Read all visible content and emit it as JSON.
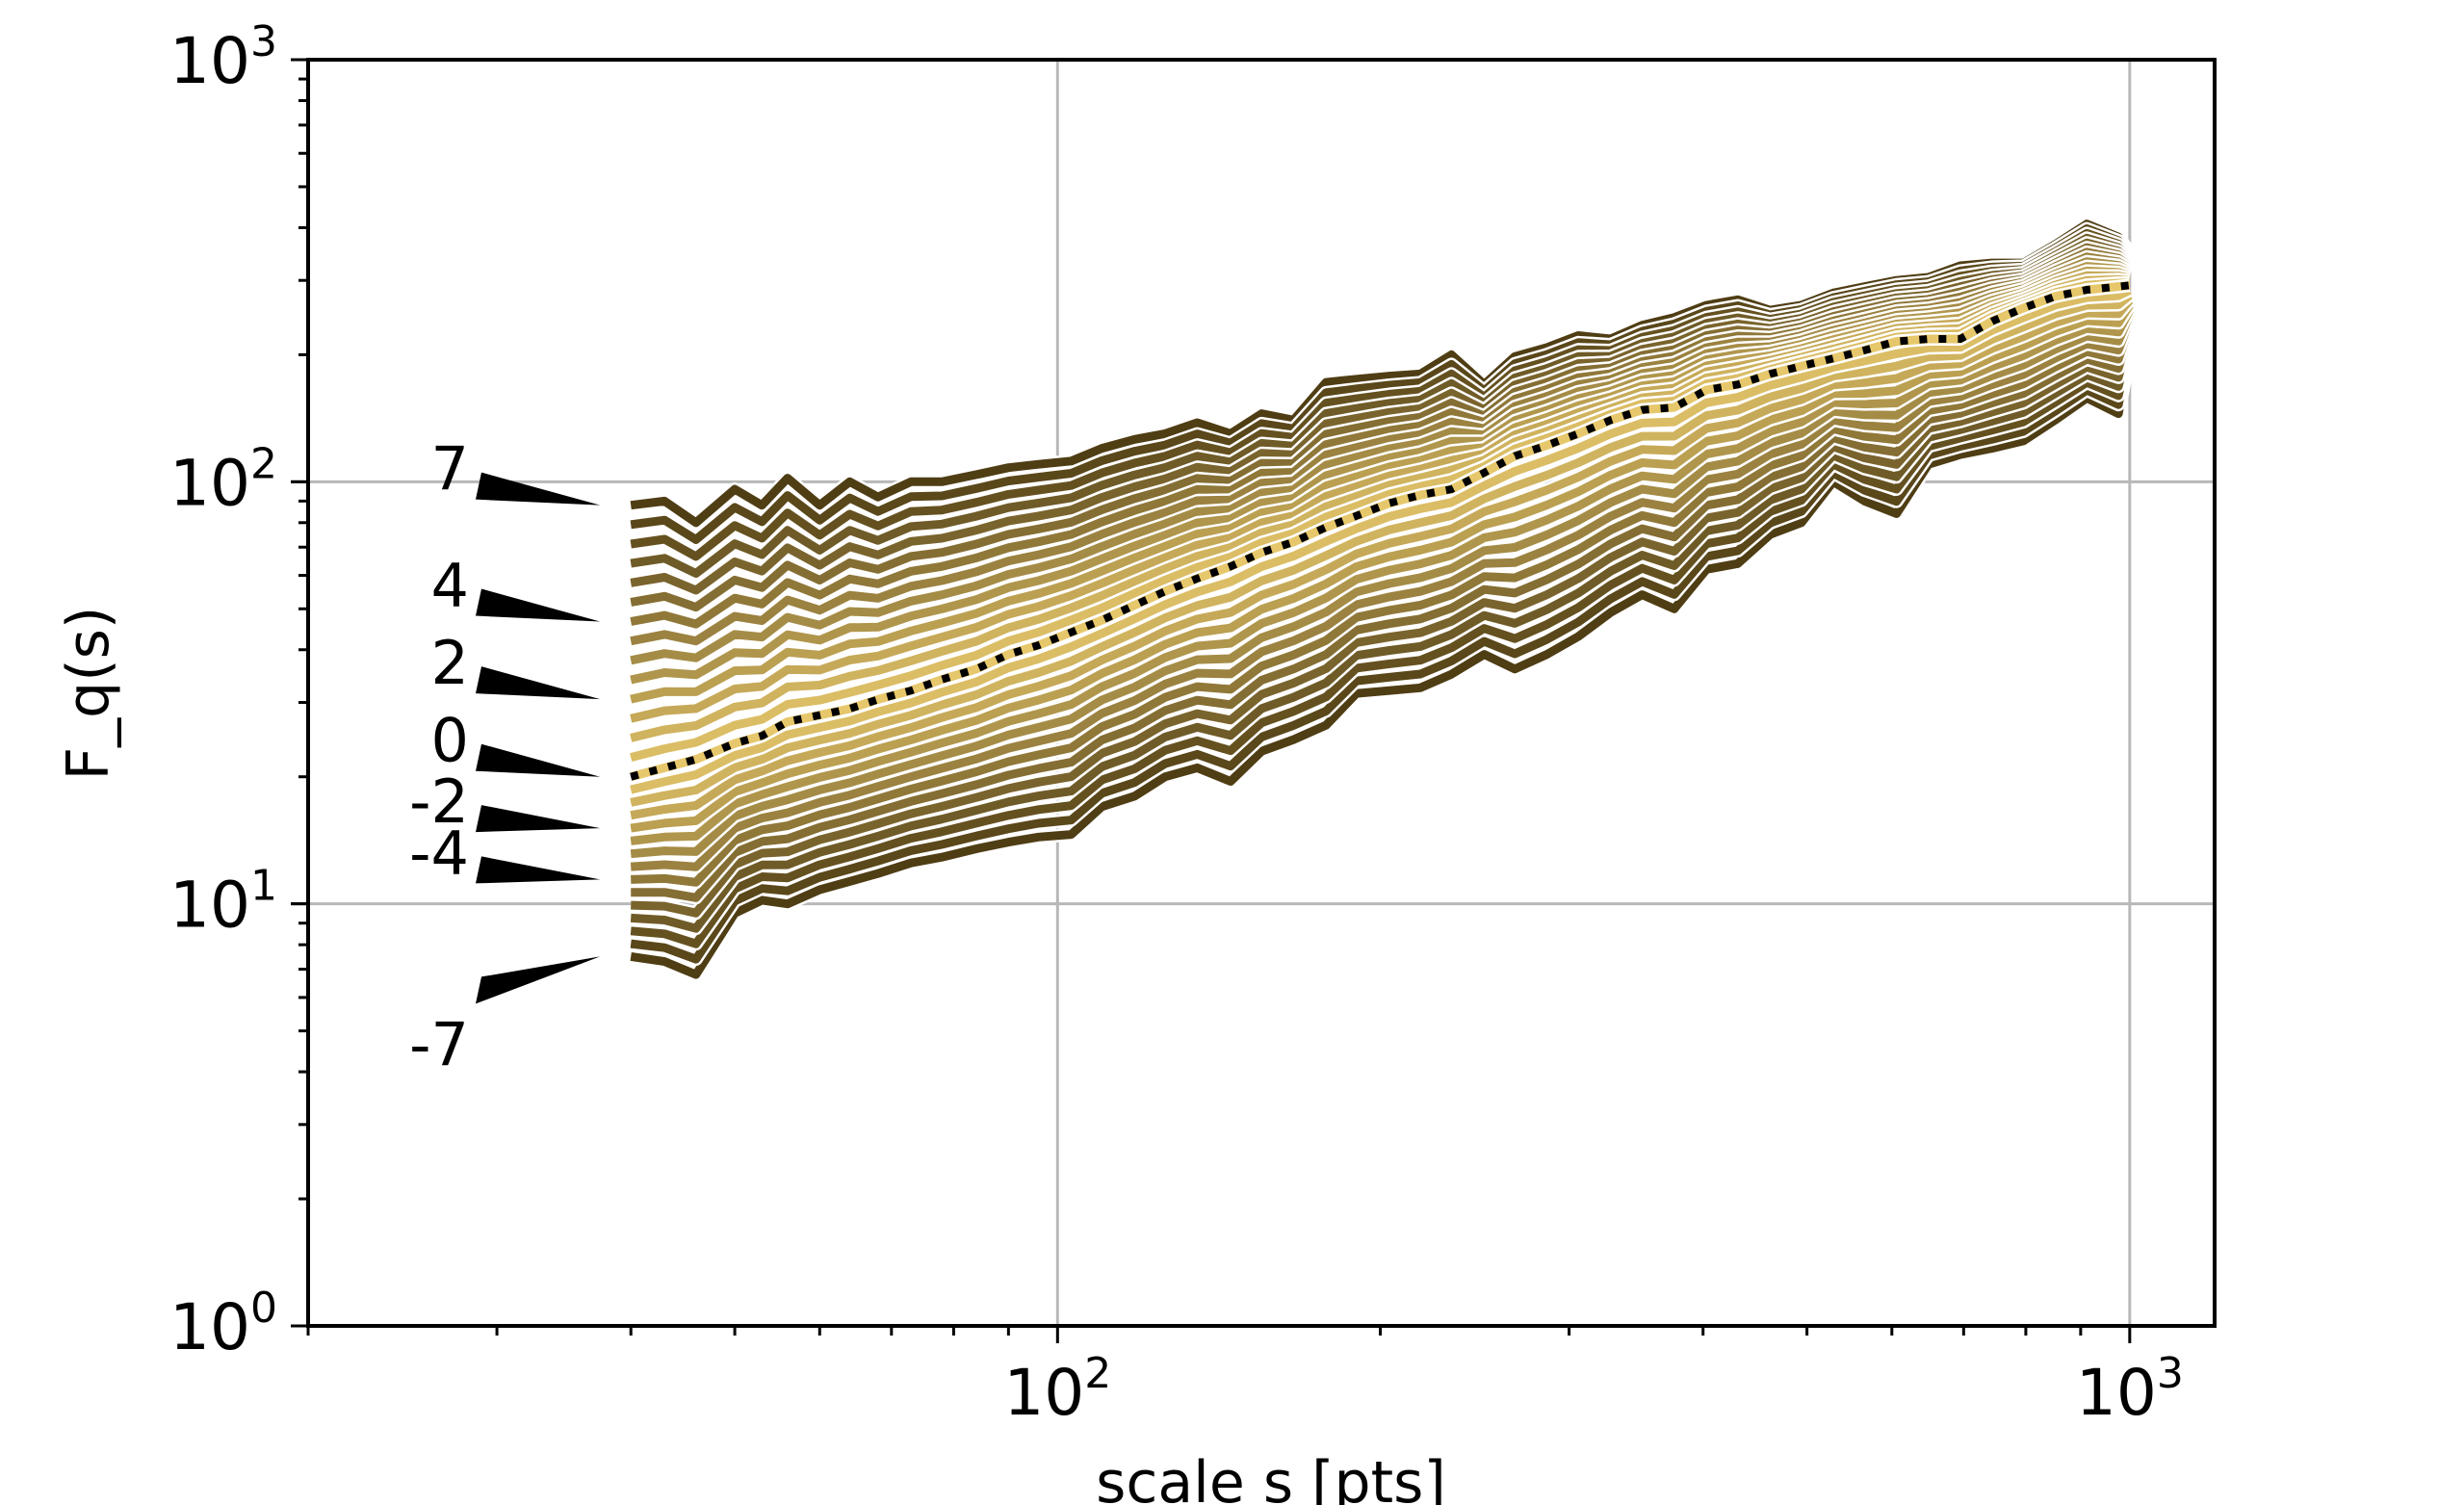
{
  "chart_data": {
    "type": "line",
    "title": "",
    "xlabel": "scale s [pts]",
    "ylabel": "F_q(s)",
    "xscale": "log",
    "yscale": "log",
    "xlim": [
      20,
      1200
    ],
    "ylim": [
      1,
      1000
    ],
    "grid": true,
    "colors": {
      "light": "#e6c76b",
      "dark": "#4f3d14",
      "q0_line": "#000000",
      "grid": "#b8b8b8"
    },
    "x_ticks": [
      {
        "base": "10",
        "exp": "2",
        "value": 100
      },
      {
        "base": "10",
        "exp": "3",
        "value": 1000
      }
    ],
    "y_ticks": [
      {
        "base": "10",
        "exp": "0",
        "value": 1
      },
      {
        "base": "10",
        "exp": "1",
        "value": 10
      },
      {
        "base": "10",
        "exp": "2",
        "value": 100
      },
      {
        "base": "10",
        "exp": "3",
        "value": 1000
      }
    ],
    "q_labels": [
      "7",
      "4",
      "2",
      "0",
      "-2",
      "-4",
      "-7"
    ],
    "q_range": [
      -7,
      7
    ],
    "highlighted_q": 0,
    "x": [
      40,
      43,
      46,
      50,
      53,
      56,
      60,
      64,
      68,
      73,
      78,
      84,
      90,
      96,
      103,
      110,
      118,
      126,
      135,
      145,
      155,
      166,
      178,
      190,
      204,
      218,
      233,
      250,
      267,
      286,
      306,
      328,
      351,
      376,
      403,
      431,
      462,
      494,
      529,
      566,
      606,
      649,
      695,
      744,
      796,
      852,
      912,
      976,
      1000
    ],
    "fq_min": [
      7.5,
      7.3,
      6.8,
      9.5,
      10.2,
      10.0,
      10.8,
      11.3,
      11.8,
      12.5,
      12.9,
      13.5,
      14.0,
      14.4,
      14.6,
      17.0,
      18.0,
      20.0,
      21.0,
      19.5,
      23.0,
      24.5,
      26.5,
      31.5,
      32.0,
      32.5,
      35.0,
      39.0,
      36.0,
      39.0,
      43.0,
      49.0,
      54.0,
      50.0,
      62.0,
      64.0,
      75.0,
      80.0,
      100.0,
      90.0,
      84.0,
      110.0,
      116.0,
      120.0,
      125.0,
      140.0,
      158.0,
      145.0,
      200.0
    ],
    "fq_q0": [
      20.0,
      21.0,
      22.0,
      24.0,
      25.0,
      27.0,
      28.0,
      29.0,
      30.5,
      32.0,
      34.0,
      36.0,
      39.0,
      41.0,
      44.0,
      47.0,
      51.0,
      55.0,
      59.0,
      63.0,
      68.0,
      72.0,
      78.0,
      83.0,
      89.0,
      93.0,
      96.0,
      105.0,
      115.0,
      122.0,
      130.0,
      140.0,
      148.0,
      150.0,
      165.0,
      170.0,
      180.0,
      188.0,
      196.0,
      205.0,
      215.0,
      218.0,
      218.0,
      240.0,
      258.0,
      275.0,
      285.0,
      290.0,
      292.0
    ],
    "fq_max": [
      88.0,
      90.0,
      80.0,
      96.0,
      88.0,
      102.0,
      88.0,
      100.0,
      92.0,
      100.0,
      100.0,
      104.0,
      108.0,
      110.0,
      112.0,
      120.0,
      126.0,
      130.0,
      138.0,
      130.0,
      145.0,
      140.0,
      172.0,
      175.0,
      178.0,
      180.0,
      200.0,
      170.0,
      198.0,
      208.0,
      222.0,
      218.0,
      235.0,
      245.0,
      262.0,
      270.0,
      255.0,
      262.0,
      280.0,
      290.0,
      300.0,
      305.0,
      325.0,
      330.0,
      330.0,
      365.0,
      408.0,
      380.0,
      350.0
    ]
  }
}
